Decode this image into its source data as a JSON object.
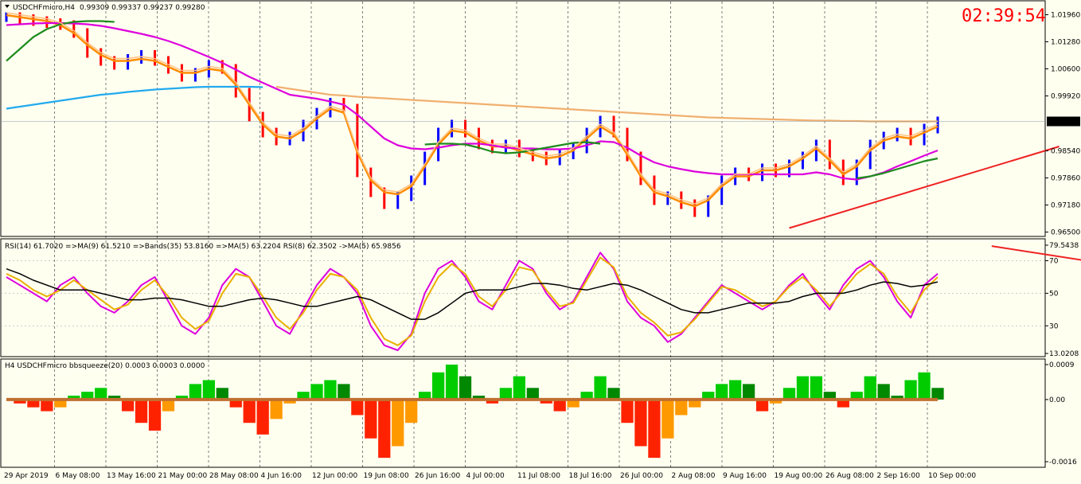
{
  "window": {
    "title": "USDCHFmicro,H4",
    "ohlc": "0.99309 0.99337 0.99237 0.99280",
    "clock": "02:39:54"
  },
  "colors": {
    "background": "#fffff0",
    "panel_border": "#000000",
    "bull_candle": "#0000ff",
    "bear_candle": "#ff0000",
    "ma_fast": "#ff8c00",
    "ma_light": "#ffc080",
    "ma_magenta": "#dd00dd",
    "ma_green": "#1e8c1e",
    "ma_cyan": "#22aaee",
    "ma_tan": "#f0b070",
    "trendline": "#ee2222",
    "hist_green": "#00cc00",
    "hist_dark_green": "#008800",
    "hist_orange": "#ff9900",
    "hist_red": "#ff2200",
    "squeeze_dot": "#c07030",
    "price_tag_bg": "#000000"
  },
  "chart_data": [
    {
      "type": "line",
      "panel": "price",
      "title": "USDCHFmicro,H4",
      "y_ticks": [
        "1.01960",
        "1.01280",
        "1.00600",
        "0.99920",
        "0.99280",
        "0.98540",
        "0.97860",
        "0.97180",
        "0.96500"
      ],
      "ylim": [
        0.9645,
        1.0225
      ],
      "current_price": "0.99280",
      "series": [
        {
          "role": "price",
          "values": [
            1.019,
            1.0185,
            1.018,
            1.0175,
            1.017,
            1.015,
            1.01,
            1.008,
            1.007,
            1.0085,
            1.0095,
            1.008,
            1.006,
            1.004,
            1.005,
            1.007,
            1.006,
            1.0,
            0.994,
            0.99,
            0.988,
            0.989,
            0.992,
            0.995,
            0.9975,
            0.996,
            0.98,
            0.975,
            0.972,
            0.974,
            0.978,
            0.984,
            0.99,
            0.992,
            0.99,
            0.987,
            0.986,
            0.987,
            0.985,
            0.984,
            0.983,
            0.9845,
            0.986,
            0.99,
            0.993,
            0.99,
            0.984,
            0.978,
            0.973,
            0.974,
            0.972,
            0.97,
            0.973,
            0.978,
            0.98,
            0.979,
            0.981,
            0.98,
            0.982,
            0.984,
            0.987,
            0.982,
            0.978,
            0.982,
            0.987,
            0.989,
            0.99,
            0.988,
            0.991,
            0.9928
          ]
        },
        {
          "role": "ma_fast",
          "values": [
            1.0195,
            1.019,
            1.0185,
            1.018,
            1.017,
            1.015,
            1.012,
            1.0095,
            1.008,
            1.008,
            1.0085,
            1.008,
            1.0065,
            1.005,
            1.005,
            1.006,
            1.0055,
            1.002,
            0.997,
            0.992,
            0.989,
            0.9885,
            0.9905,
            0.9935,
            0.996,
            0.995,
            0.985,
            0.978,
            0.975,
            0.9745,
            0.9765,
            0.9815,
            0.987,
            0.9905,
            0.99,
            0.988,
            0.9865,
            0.9865,
            0.9855,
            0.9845,
            0.9835,
            0.984,
            0.9855,
            0.9885,
            0.9915,
            0.9895,
            0.9845,
            0.979,
            0.975,
            0.974,
            0.9725,
            0.9715,
            0.973,
            0.9765,
            0.979,
            0.979,
            0.9805,
            0.9805,
            0.9815,
            0.9835,
            0.986,
            0.983,
            0.9795,
            0.9815,
            0.9855,
            0.988,
            0.989,
            0.9885,
            0.99,
            0.9915
          ]
        },
        {
          "role": "ma_magenta",
          "values": [
            1.017,
            1.0172,
            1.0174,
            1.0175,
            1.0175,
            1.0174,
            1.0172,
            1.0168,
            1.0162,
            1.0155,
            1.0148,
            1.014,
            1.013,
            1.0118,
            1.0104,
            1.009,
            1.0075,
            1.0058,
            1.004,
            1.0025,
            1.001,
            0.9995,
            0.999,
            0.9985,
            0.9978,
            0.997,
            0.9945,
            0.9915,
            0.9885,
            0.9868,
            0.986,
            0.9858,
            0.9862,
            0.9868,
            0.9872,
            0.9872,
            0.9868,
            0.9862,
            0.986,
            0.986,
            0.9858,
            0.9858,
            0.986,
            0.9868,
            0.9878,
            0.9876,
            0.9862,
            0.9842,
            0.9825,
            0.9815,
            0.9808,
            0.9802,
            0.9798,
            0.9795,
            0.9795,
            0.9795,
            0.9795,
            0.9795,
            0.9795,
            0.9795,
            0.98,
            0.9795,
            0.9785,
            0.9782,
            0.979,
            0.98,
            0.9815,
            0.9828,
            0.9842,
            0.9855
          ]
        },
        {
          "role": "ma_green",
          "values": [
            1.008,
            1.011,
            1.014,
            1.016,
            1.0172,
            1.0178,
            1.018,
            1.018,
            1.0178,
            null,
            null,
            null,
            null,
            null,
            null,
            null,
            null,
            null,
            null,
            null,
            null,
            null,
            null,
            null,
            null,
            null,
            null,
            null,
            null,
            null,
            null,
            0.987,
            0.9872,
            0.9872,
            0.987,
            0.9862,
            0.9852,
            0.9848,
            0.985,
            0.9856,
            0.9862,
            0.9868,
            0.9874,
            0.9876,
            0.9872,
            null,
            null,
            null,
            null,
            null,
            null,
            null,
            null,
            null,
            null,
            null,
            null,
            null,
            null,
            null,
            null,
            null,
            null,
            0.9785,
            0.979,
            0.9798,
            0.9808,
            0.9818,
            0.9828,
            0.9835
          ]
        },
        {
          "role": "ma_cyan",
          "values": [
            0.996,
            0.9965,
            0.997,
            0.9975,
            0.998,
            0.9985,
            0.999,
            0.9995,
            0.9998,
            1.0002,
            1.0005,
            1.0008,
            1.001,
            1.0012,
            1.0014,
            1.0015,
            1.0015,
            1.0015,
            1.0015,
            1.0014,
            null,
            null,
            null,
            null,
            null,
            null,
            null,
            null,
            null,
            null,
            null,
            null,
            null,
            null,
            null,
            null,
            null,
            null,
            null,
            null,
            null,
            null,
            null,
            null,
            null,
            null,
            null,
            null,
            null,
            null,
            null,
            null,
            null,
            null,
            null,
            null,
            null,
            null,
            null,
            null,
            null,
            null,
            null,
            null,
            null,
            null,
            null,
            null,
            null,
            null
          ]
        },
        {
          "role": "ma_tan",
          "values": [
            null,
            null,
            null,
            null,
            null,
            null,
            null,
            null,
            null,
            null,
            null,
            null,
            null,
            null,
            null,
            null,
            null,
            null,
            null,
            null,
            1.0015,
            1.001,
            1.0005,
            1.0,
            0.9995,
            0.9993,
            0.999,
            0.9988,
            0.9986,
            0.9984,
            0.9982,
            0.998,
            0.9978,
            0.9976,
            0.9974,
            0.9972,
            0.997,
            0.9968,
            0.9966,
            0.9964,
            0.9962,
            0.996,
            0.9958,
            0.9956,
            0.9954,
            0.9952,
            0.995,
            0.9948,
            0.9946,
            0.9944,
            0.9942,
            0.994,
            0.9938,
            0.9937,
            0.9936,
            0.9935,
            0.9934,
            0.9933,
            0.9932,
            0.9931,
            0.993,
            0.993,
            0.9929,
            0.9929,
            0.9928,
            0.9928,
            0.9928,
            0.9928,
            0.9928,
            0.9928
          ]
        }
      ],
      "trendline": {
        "from": [
          58,
          0.966
        ],
        "to": [
          78,
          0.9865
        ]
      }
    },
    {
      "type": "line",
      "panel": "rsi",
      "header": "RSI(14) 61.7020  =>MA(9) 61.5210  =>Bands(35) 53.8160  =>MA(5) 63.2204  RSI(8) 62.3502  ->MA(5) 65.9856",
      "y_ticks": [
        "79.5438",
        "70",
        "50",
        "30",
        "13.0208"
      ],
      "ylim": [
        13.0208,
        79.5438
      ],
      "series": [
        {
          "role": "rsi_magenta",
          "values": [
            60,
            55,
            50,
            45,
            55,
            60,
            50,
            42,
            38,
            45,
            55,
            60,
            45,
            30,
            25,
            35,
            55,
            65,
            60,
            45,
            30,
            25,
            40,
            55,
            65,
            60,
            50,
            30,
            18,
            15,
            25,
            50,
            65,
            70,
            60,
            45,
            40,
            55,
            70,
            65,
            50,
            40,
            45,
            60,
            75,
            65,
            45,
            35,
            30,
            20,
            25,
            35,
            45,
            55,
            50,
            45,
            40,
            45,
            55,
            62,
            50,
            40,
            55,
            65,
            70,
            60,
            45,
            35,
            55,
            62
          ]
        },
        {
          "role": "rsi_gold",
          "values": [
            62,
            58,
            52,
            48,
            52,
            58,
            52,
            46,
            40,
            43,
            52,
            58,
            48,
            35,
            28,
            33,
            50,
            62,
            60,
            48,
            35,
            28,
            38,
            52,
            62,
            60,
            52,
            35,
            22,
            18,
            24,
            45,
            60,
            68,
            62,
            48,
            42,
            52,
            66,
            64,
            52,
            42,
            44,
            58,
            72,
            66,
            48,
            38,
            32,
            24,
            26,
            34,
            44,
            54,
            52,
            47,
            42,
            45,
            54,
            60,
            52,
            42,
            52,
            62,
            68,
            62,
            48,
            38,
            52,
            60
          ]
        },
        {
          "role": "rsi_black",
          "values": [
            65,
            62,
            58,
            55,
            52,
            52,
            52,
            50,
            48,
            46,
            46,
            47,
            47,
            46,
            44,
            42,
            42,
            44,
            46,
            47,
            46,
            44,
            42,
            42,
            44,
            46,
            48,
            46,
            42,
            38,
            34,
            34,
            38,
            44,
            50,
            52,
            52,
            52,
            54,
            56,
            56,
            55,
            53,
            52,
            54,
            56,
            55,
            52,
            48,
            44,
            40,
            38,
            38,
            40,
            42,
            44,
            44,
            44,
            45,
            48,
            50,
            50,
            50,
            52,
            55,
            57,
            56,
            54,
            55,
            57
          ]
        }
      ],
      "trendline": {
        "from": [
          73,
          79
        ],
        "to": [
          80,
          70
        ]
      }
    },
    {
      "type": "bar",
      "panel": "bbsqueeze",
      "header": "H4 USDCHFmicro bbsqueeze(20) 0.0003 0.0003 0.0000",
      "y_ticks": [
        "0.0009",
        "0.00",
        "-0.0016"
      ],
      "ylim": [
        -0.0016,
        0.0009
      ],
      "values": [
        0.0,
        -0.0001,
        -0.0002,
        -0.0003,
        -0.0002,
        0.0001,
        0.0002,
        0.0003,
        0.0001,
        -0.0003,
        -0.0006,
        -0.0008,
        -0.0003,
        0.0001,
        0.0004,
        0.0005,
        0.0003,
        -0.0002,
        -0.0006,
        -0.0009,
        -0.0005,
        -0.0001,
        0.0002,
        0.0004,
        0.0005,
        0.0004,
        -0.0004,
        -0.001,
        -0.0015,
        -0.0012,
        -0.0006,
        0.0002,
        0.0007,
        0.0009,
        0.0006,
        0.0001,
        -0.0001,
        0.0003,
        0.0006,
        0.0003,
        -0.0001,
        -0.0003,
        -0.0002,
        0.0002,
        0.0006,
        0.0003,
        -0.0006,
        -0.0012,
        -0.0015,
        -0.001,
        -0.0004,
        -0.0002,
        0.0002,
        0.0004,
        0.0005,
        0.0004,
        -0.0003,
        -0.0001,
        0.0003,
        0.0006,
        0.0006,
        0.0002,
        -0.0002,
        0.0002,
        0.0006,
        0.0004,
        0.0001,
        0.0005,
        0.0007,
        0.0003
      ]
    }
  ],
  "x_axis": {
    "labels": [
      "29 Apr 2019",
      "6 May 08:00",
      "13 May 16:00",
      "21 May 00:00",
      "28 May 08:00",
      "4 Jun 16:00",
      "12 Jun 00:00",
      "19 Jun 08:00",
      "26 Jun 16:00",
      "4 Jul 00:00",
      "11 Jul 08:00",
      "18 Jul 16:00",
      "26 Jul 00:00",
      "2 Aug 08:00",
      "9 Aug 16:00",
      "19 Aug 00:00",
      "26 Aug 08:00",
      "2 Sep 16:00",
      "10 Sep 00:00"
    ]
  }
}
